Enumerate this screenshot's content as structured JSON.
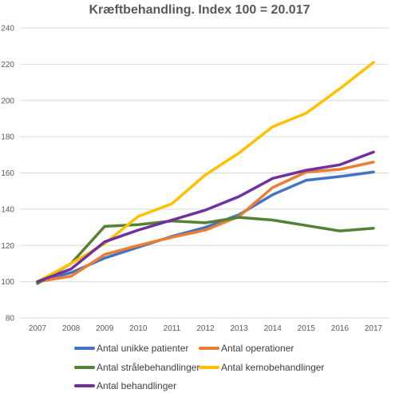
{
  "chart_data": {
    "type": "line",
    "title": "Kræftbehandling. Index 100 = 20.017",
    "categories": [
      "2007",
      "2008",
      "2009",
      "2010",
      "2011",
      "2012",
      "2013",
      "2014",
      "2015",
      "2016",
      "2017"
    ],
    "ylim": [
      80,
      240
    ],
    "yticks": [
      80,
      100,
      120,
      140,
      160,
      180,
      200,
      220,
      240
    ],
    "grid": true,
    "legend_position": "bottom",
    "series": [
      {
        "name": "Antal unikke patienter",
        "color": "#4472C4",
        "values": [
          100,
          105,
          113,
          119,
          125,
          130,
          137,
          148,
          156,
          158,
          160.5
        ]
      },
      {
        "name": "Antal operationer",
        "color": "#ED7D31",
        "values": [
          100,
          103,
          115,
          120,
          124.5,
          128.5,
          136,
          152,
          160.5,
          162,
          166
        ]
      },
      {
        "name": "Antal strålebehandlinger",
        "color": "#548235",
        "values": [
          99,
          110,
          130.5,
          131.5,
          133.5,
          132.5,
          135.5,
          134,
          131,
          128,
          129.5
        ]
      },
      {
        "name": "Antal kemobehandlinger",
        "color": "#FFC000",
        "values": [
          100,
          110,
          121,
          136,
          143,
          159,
          171,
          185.5,
          193,
          206.5,
          221
        ]
      },
      {
        "name": "Antal behandlinger",
        "color": "#7030A0",
        "values": [
          100,
          107,
          122,
          128.5,
          134,
          139.5,
          147,
          157,
          161.5,
          164.5,
          171.5
        ]
      }
    ]
  }
}
